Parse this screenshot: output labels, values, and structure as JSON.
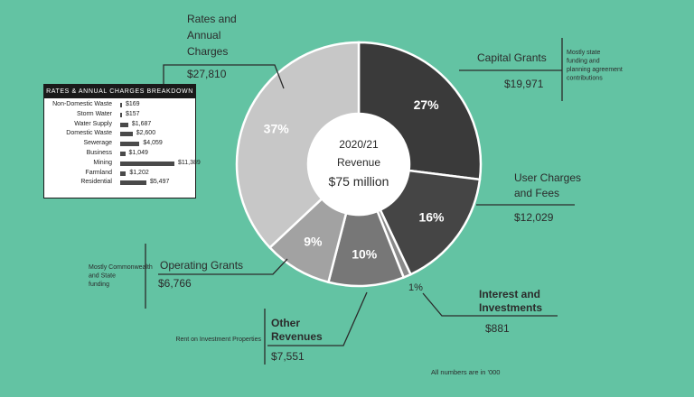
{
  "chart_data": {
    "type": "pie",
    "center_label": {
      "line1": "2020/21",
      "line2": "Revenue",
      "line3": "$75 million"
    },
    "footnote": "All numbers are in '000",
    "slices": [
      {
        "name_lines": [
          "Capital Grants"
        ],
        "value": "$19,971",
        "percent": 27,
        "percent_label": "27%",
        "note_lines": [
          "Mostly state",
          "funding and",
          "planning agreement",
          "contributions"
        ],
        "color": "#3a3a3a"
      },
      {
        "name_lines": [
          "User Charges",
          "and Fees"
        ],
        "value": "$12,029",
        "percent": 16,
        "percent_label": "16%",
        "color": "#454545"
      },
      {
        "name_lines": [
          "Interest and",
          "Investments"
        ],
        "value": "$881",
        "percent": 1,
        "percent_label": "1%",
        "color": "#8a8a8a"
      },
      {
        "name_lines": [
          "Other",
          "Revenues"
        ],
        "value": "$7,551",
        "percent": 10,
        "percent_label": "10%",
        "note_lines": [
          "Rent on Investment Properties"
        ],
        "color": "#777777"
      },
      {
        "name_lines": [
          "Operating Grants"
        ],
        "value": "$6,766",
        "percent": 9,
        "percent_label": "9%",
        "note_lines": [
          "Mostly Commonwealth",
          "and State",
          "funding"
        ],
        "color": "#a2a2a2"
      },
      {
        "name_lines": [
          "Rates and",
          "Annual",
          "Charges"
        ],
        "value": "$27,810",
        "percent": 37,
        "percent_label": "37%",
        "color": "#c7c7c7"
      }
    ],
    "breakdown": {
      "title": "RATES & ANNUAL CHARGES BREAKDOWN",
      "type": "bar",
      "categories": [
        "Non-Domestic Waste",
        "Storm Water",
        "Water Supply",
        "Domestic Waste",
        "Sewerage",
        "Business",
        "Mining",
        "Farmland",
        "Residential"
      ],
      "values": [
        169,
        157,
        1687,
        2600,
        4059,
        1049,
        11389,
        1202,
        5497
      ],
      "value_labels": [
        "$169",
        "$157",
        "$1,687",
        "$2,600",
        "$4,059",
        "$1,049",
        "$11,389",
        "$1,202",
        "$5,497"
      ]
    }
  }
}
